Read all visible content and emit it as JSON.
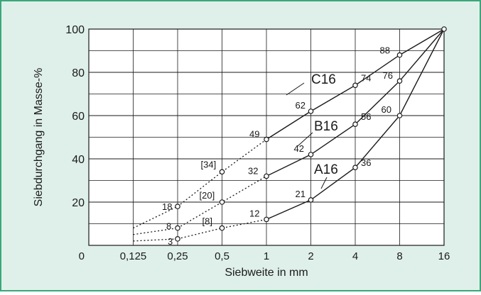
{
  "colors": {
    "background": "#dff0ea",
    "border": "#3aa77a",
    "ink": "#1a1a1a"
  },
  "chart_data": {
    "type": "line",
    "xlabel": "Siebweite in mm",
    "ylabel": "Siebdurchgang in Masse-%",
    "x_categories": [
      "0",
      "0,125",
      "0,25",
      "0,5",
      "1",
      "2",
      "4",
      "8",
      "16"
    ],
    "y_ticks": [
      0,
      20,
      40,
      60,
      80,
      100
    ],
    "ylim": [
      0,
      100
    ],
    "grid": "on",
    "series": [
      {
        "name": "C16",
        "points": [
          {
            "x": "0,25",
            "y": 18,
            "label": "18"
          },
          {
            "x": "0,5",
            "y": 34,
            "label": "[34]"
          },
          {
            "x": "1",
            "y": 49,
            "label": "49"
          },
          {
            "x": "2",
            "y": 62,
            "label": "62"
          },
          {
            "x": "4",
            "y": 74,
            "label": "74"
          },
          {
            "x": "8",
            "y": 88,
            "label": "88"
          },
          {
            "x": "16",
            "y": 100,
            "label": ""
          }
        ],
        "dotted_to_0125": 8
      },
      {
        "name": "B16",
        "points": [
          {
            "x": "0,25",
            "y": 8,
            "label": "8"
          },
          {
            "x": "0,5",
            "y": 20,
            "label": "[20]"
          },
          {
            "x": "1",
            "y": 32,
            "label": "32"
          },
          {
            "x": "2",
            "y": 42,
            "label": "42"
          },
          {
            "x": "4",
            "y": 56,
            "label": "56"
          },
          {
            "x": "8",
            "y": 76,
            "label": "76"
          },
          {
            "x": "16",
            "y": 100,
            "label": ""
          }
        ],
        "dotted_to_0125": 5
      },
      {
        "name": "A16",
        "points": [
          {
            "x": "0,25",
            "y": 3,
            "label": "3"
          },
          {
            "x": "0,5",
            "y": 8,
            "label": "[8]"
          },
          {
            "x": "1",
            "y": 12,
            "label": "12"
          },
          {
            "x": "2",
            "y": 21,
            "label": "21"
          },
          {
            "x": "4",
            "y": 36,
            "label": "36"
          },
          {
            "x": "8",
            "y": 60,
            "label": "60"
          },
          {
            "x": "16",
            "y": 100,
            "label": ""
          }
        ],
        "dotted_to_0125": 2
      }
    ]
  }
}
